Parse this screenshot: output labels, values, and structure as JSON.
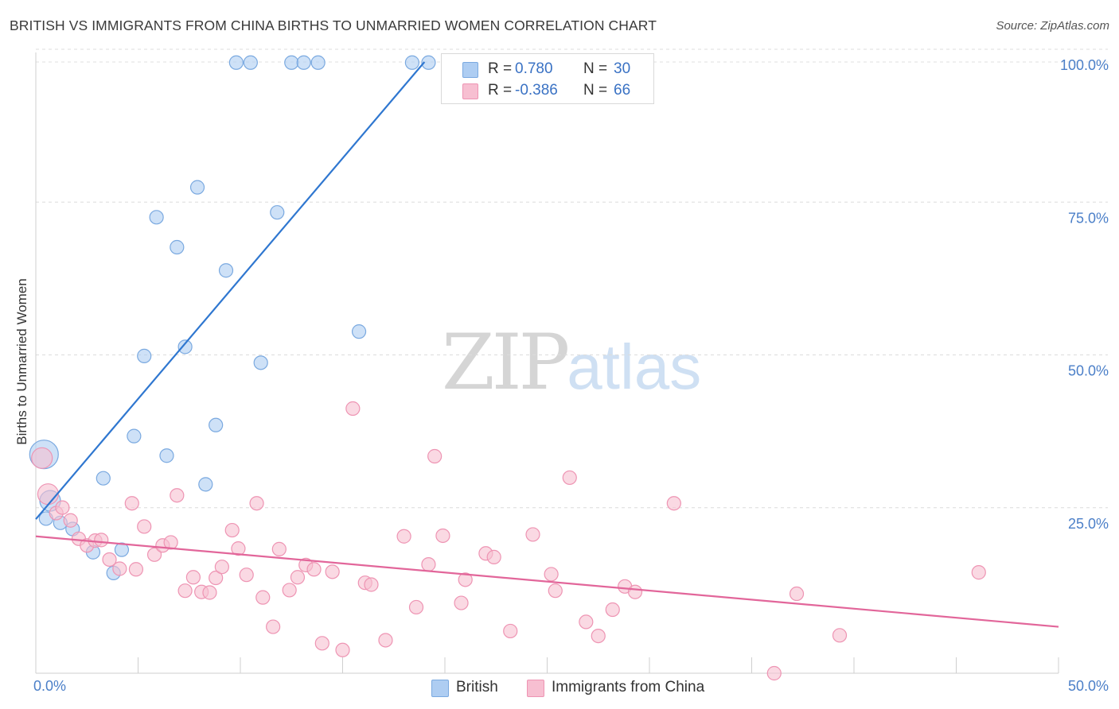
{
  "title": "BRITISH VS IMMIGRANTS FROM CHINA BIRTHS TO UNMARRIED WOMEN CORRELATION CHART",
  "source": "Source: ZipAtlas.com",
  "watermark": {
    "zip": "ZIP",
    "atlas": "atlas"
  },
  "legend_top": [
    {
      "r_label": "R =",
      "r_value": "0.780",
      "n_label": "N =",
      "n_value": "30",
      "color": "#aecdf2",
      "border": "#7aa9e0"
    },
    {
      "r_label": "R =",
      "r_value": "-0.386",
      "n_label": "N =",
      "n_value": "66",
      "color": "#f7bfd1",
      "border": "#ee94b3"
    }
  ],
  "chart_data": {
    "type": "scatter",
    "title": "BRITISH VS IMMIGRANTS FROM CHINA BIRTHS TO UNMARRIED WOMEN CORRELATION CHART",
    "xlabel": "",
    "ylabel": "Births to Unmarried Women",
    "xlim": [
      0,
      50
    ],
    "ylim": [
      0,
      100
    ],
    "x_tick_labels": [
      "0.0%",
      "50.0%"
    ],
    "y_tick_labels": [
      {
        "value": 25,
        "label": "25.0%"
      },
      {
        "value": 50,
        "label": "50.0%"
      },
      {
        "value": 75,
        "label": "75.0%"
      },
      {
        "value": 100,
        "label": "100.0%"
      }
    ],
    "grid": true,
    "legend_position": "bottom",
    "series": [
      {
        "name": "British",
        "color": "#aecdf2",
        "stroke": "#7aa9e0",
        "line_color": "#2f77d0",
        "trendline": {
          "x": [
            0.0,
            19.0
          ],
          "y": [
            25.2,
            100.0
          ]
        },
        "points": [
          [
            0.4,
            35.8,
            3
          ],
          [
            0.7,
            28.2,
            2
          ],
          [
            1.2,
            24.6,
            1
          ],
          [
            1.8,
            23.6,
            1
          ],
          [
            2.8,
            19.8,
            1
          ],
          [
            3.3,
            31.9,
            1
          ],
          [
            3.8,
            16.4,
            1
          ],
          [
            4.2,
            20.2,
            1
          ],
          [
            4.8,
            38.8,
            1
          ],
          [
            5.3,
            51.9,
            1
          ],
          [
            5.9,
            74.6,
            1
          ],
          [
            6.4,
            35.6,
            1
          ],
          [
            6.9,
            69.7,
            1
          ],
          [
            7.3,
            53.4,
            1
          ],
          [
            7.9,
            79.5,
            1
          ],
          [
            8.3,
            30.9,
            1
          ],
          [
            8.8,
            40.6,
            1
          ],
          [
            9.3,
            65.9,
            1
          ],
          [
            9.8,
            99.9,
            1
          ],
          [
            10.5,
            99.9,
            1
          ],
          [
            11.0,
            50.8,
            1
          ],
          [
            11.8,
            75.4,
            1
          ],
          [
            12.5,
            99.9,
            1
          ],
          [
            13.1,
            99.9,
            1
          ],
          [
            13.8,
            99.9,
            1
          ],
          [
            15.8,
            55.9,
            1
          ],
          [
            18.4,
            99.9,
            1
          ],
          [
            19.2,
            99.9,
            1
          ],
          [
            20.7,
            100.0,
            1
          ],
          [
            0.5,
            25.3,
            1
          ]
        ]
      },
      {
        "name": "Immigrants from China",
        "color": "#f7bfd1",
        "stroke": "#ee94b3",
        "line_color": "#e2669a",
        "trendline": {
          "x": [
            0.0,
            50.0
          ],
          "y": [
            22.4,
            7.6
          ]
        },
        "points": [
          [
            0.3,
            35.2,
            2
          ],
          [
            0.6,
            29.3,
            2
          ],
          [
            1.0,
            26.2,
            1
          ],
          [
            1.3,
            27.1,
            1
          ],
          [
            1.7,
            25.0,
            1
          ],
          [
            2.1,
            22.0,
            1
          ],
          [
            2.5,
            20.9,
            1
          ],
          [
            2.9,
            21.7,
            1
          ],
          [
            3.2,
            21.8,
            1
          ],
          [
            3.6,
            18.6,
            1
          ],
          [
            4.1,
            17.1,
            1
          ],
          [
            4.7,
            27.8,
            1
          ],
          [
            4.9,
            17.0,
            1
          ],
          [
            5.3,
            24.0,
            1
          ],
          [
            5.8,
            19.4,
            1
          ],
          [
            6.2,
            20.9,
            1
          ],
          [
            6.6,
            21.4,
            1
          ],
          [
            6.9,
            29.1,
            1
          ],
          [
            7.3,
            13.5,
            1
          ],
          [
            7.7,
            15.7,
            1
          ],
          [
            8.1,
            13.3,
            1
          ],
          [
            8.5,
            13.2,
            1
          ],
          [
            8.8,
            15.6,
            1
          ],
          [
            9.1,
            17.4,
            1
          ],
          [
            9.6,
            23.4,
            1
          ],
          [
            9.9,
            20.4,
            1
          ],
          [
            10.3,
            16.1,
            1
          ],
          [
            10.8,
            27.8,
            1
          ],
          [
            11.1,
            12.4,
            1
          ],
          [
            11.6,
            7.6,
            1
          ],
          [
            11.9,
            20.3,
            1
          ],
          [
            12.4,
            13.6,
            1
          ],
          [
            12.8,
            15.7,
            1
          ],
          [
            13.2,
            17.7,
            1
          ],
          [
            13.6,
            17.0,
            1
          ],
          [
            14.0,
            4.9,
            1
          ],
          [
            14.5,
            16.6,
            1
          ],
          [
            15.0,
            3.8,
            1
          ],
          [
            15.5,
            43.3,
            1
          ],
          [
            16.1,
            14.8,
            1
          ],
          [
            16.4,
            14.5,
            1
          ],
          [
            17.1,
            5.4,
            1
          ],
          [
            18.0,
            22.4,
            1
          ],
          [
            18.6,
            10.8,
            1
          ],
          [
            19.2,
            17.8,
            1
          ],
          [
            19.5,
            35.5,
            1
          ],
          [
            19.9,
            22.5,
            1
          ],
          [
            20.8,
            11.5,
            1
          ],
          [
            21.0,
            15.3,
            1
          ],
          [
            22.0,
            19.6,
            1
          ],
          [
            22.4,
            19.0,
            1
          ],
          [
            23.2,
            6.9,
            1
          ],
          [
            24.3,
            22.7,
            1
          ],
          [
            25.2,
            16.2,
            1
          ],
          [
            25.4,
            13.5,
            1
          ],
          [
            26.1,
            32.0,
            1
          ],
          [
            26.9,
            8.4,
            1
          ],
          [
            27.5,
            6.1,
            1
          ],
          [
            28.2,
            10.4,
            1
          ],
          [
            28.8,
            14.2,
            1
          ],
          [
            29.3,
            13.3,
            1
          ],
          [
            31.2,
            27.8,
            1
          ],
          [
            36.1,
            0.0,
            1
          ],
          [
            37.2,
            13.0,
            1
          ],
          [
            39.3,
            6.2,
            1
          ],
          [
            46.1,
            16.5,
            1
          ]
        ]
      }
    ]
  }
}
